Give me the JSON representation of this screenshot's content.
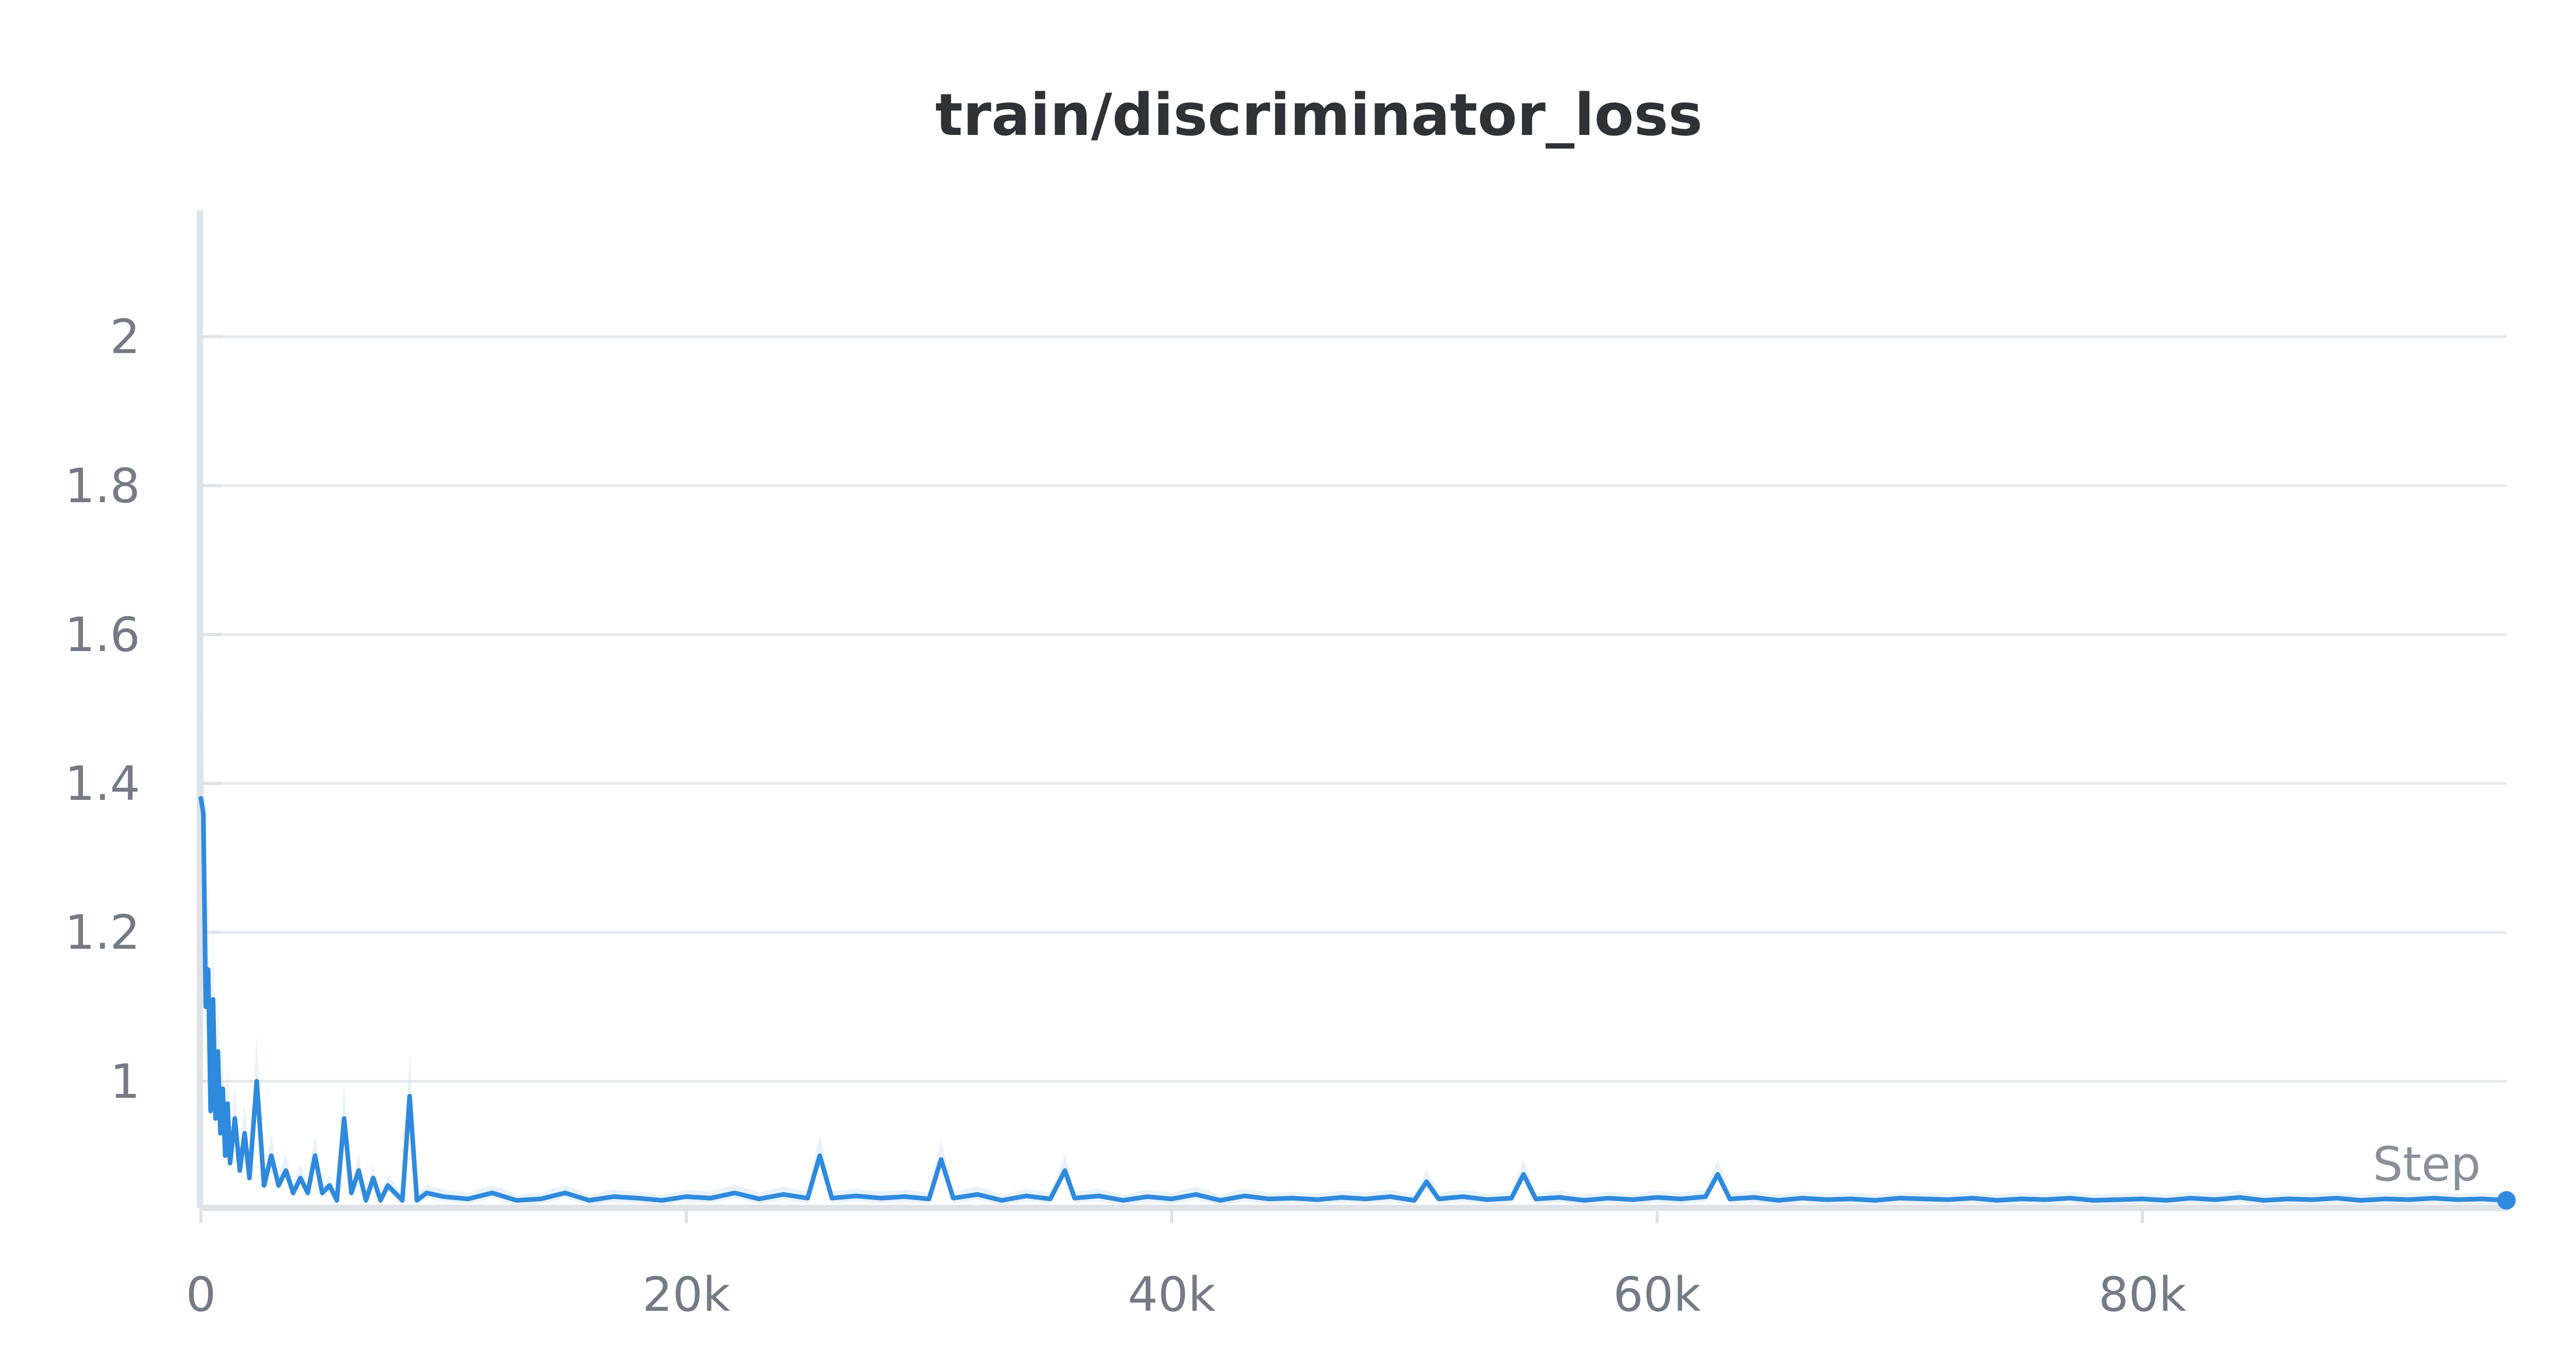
{
  "chart_data": {
    "type": "line",
    "title": "train/discriminator_loss",
    "xlabel": "Step",
    "ylabel": "",
    "xlim": [
      0,
      95000
    ],
    "ylim": [
      0.83,
      2.17
    ],
    "x_ticks": [
      {
        "value": 0,
        "label": "0"
      },
      {
        "value": 20000,
        "label": "20k"
      },
      {
        "value": 40000,
        "label": "40k"
      },
      {
        "value": 60000,
        "label": "60k"
      },
      {
        "value": 80000,
        "label": "80k"
      }
    ],
    "y_ticks": [
      {
        "value": 1,
        "label": "1"
      },
      {
        "value": 1.2,
        "label": "1.2"
      },
      {
        "value": 1.4,
        "label": "1.4"
      },
      {
        "value": 1.6,
        "label": "1.6"
      },
      {
        "value": 1.8,
        "label": "1.8"
      },
      {
        "value": 2,
        "label": "2"
      }
    ],
    "grid": true,
    "colors": {
      "line": "#2f8ade",
      "band": "#cfe3f7",
      "grid": "#e5e8ec",
      "axis": "#dfe2e6",
      "title": "#2f3137",
      "tick": "#747b87"
    },
    "series": [
      {
        "name": "",
        "x": [
          0,
          100,
          200,
          300,
          400,
          500,
          600,
          700,
          800,
          900,
          1000,
          1100,
          1200,
          1400,
          1600,
          1800,
          2000,
          2300,
          2600,
          2900,
          3200,
          3500,
          3800,
          4100,
          4400,
          4700,
          5000,
          5300,
          5600,
          5900,
          6200,
          6500,
          6800,
          7100,
          7400,
          7700,
          8000,
          8300,
          8600,
          8900,
          9300,
          10000,
          11000,
          12000,
          13000,
          14000,
          15000,
          16000,
          17000,
          18000,
          19000,
          20000,
          21000,
          22000,
          23000,
          24000,
          25000,
          25500,
          26000,
          27000,
          28000,
          29000,
          30000,
          30500,
          31000,
          32000,
          33000,
          34000,
          35000,
          35600,
          36000,
          37000,
          38000,
          39000,
          40000,
          41000,
          42000,
          43000,
          44000,
          45000,
          46000,
          47000,
          48000,
          49000,
          50000,
          50500,
          51000,
          52000,
          53000,
          54000,
          54500,
          55000,
          56000,
          57000,
          58000,
          59000,
          60000,
          61000,
          62000,
          62500,
          63000,
          64000,
          65000,
          66000,
          67000,
          68000,
          69000,
          70000,
          71000,
          72000,
          73000,
          74000,
          75000,
          76000,
          77000,
          78000,
          79000,
          80000,
          81000,
          82000,
          83000,
          84000,
          85000,
          86000,
          87000,
          88000,
          89000,
          90000,
          91000,
          92000,
          93000,
          94000,
          95000
        ],
        "values": [
          1.38,
          1.36,
          1.1,
          1.15,
          0.96,
          1.11,
          0.95,
          1.04,
          0.93,
          0.99,
          0.9,
          0.97,
          0.89,
          0.95,
          0.88,
          0.93,
          0.87,
          1.0,
          0.86,
          0.9,
          0.86,
          0.88,
          0.85,
          0.87,
          0.85,
          0.9,
          0.85,
          0.86,
          0.84,
          0.95,
          0.85,
          0.88,
          0.84,
          0.87,
          0.84,
          0.86,
          0.85,
          0.84,
          0.98,
          0.84,
          0.85,
          0.845,
          0.842,
          0.85,
          0.84,
          0.842,
          0.85,
          0.84,
          0.845,
          0.843,
          0.84,
          0.845,
          0.843,
          0.85,
          0.842,
          0.848,
          0.843,
          0.9,
          0.843,
          0.846,
          0.843,
          0.845,
          0.842,
          0.895,
          0.843,
          0.848,
          0.84,
          0.846,
          0.842,
          0.88,
          0.843,
          0.846,
          0.84,
          0.845,
          0.842,
          0.848,
          0.84,
          0.846,
          0.842,
          0.843,
          0.841,
          0.844,
          0.842,
          0.845,
          0.84,
          0.865,
          0.842,
          0.845,
          0.841,
          0.843,
          0.875,
          0.842,
          0.844,
          0.84,
          0.843,
          0.841,
          0.844,
          0.842,
          0.845,
          0.875,
          0.842,
          0.844,
          0.84,
          0.843,
          0.841,
          0.842,
          0.84,
          0.843,
          0.842,
          0.841,
          0.843,
          0.84,
          0.842,
          0.841,
          0.843,
          0.84,
          0.841,
          0.842,
          0.84,
          0.843,
          0.841,
          0.844,
          0.84,
          0.842,
          0.841,
          0.843,
          0.84,
          0.842,
          0.841,
          0.843,
          0.841,
          0.842,
          0.84
        ]
      }
    ]
  }
}
